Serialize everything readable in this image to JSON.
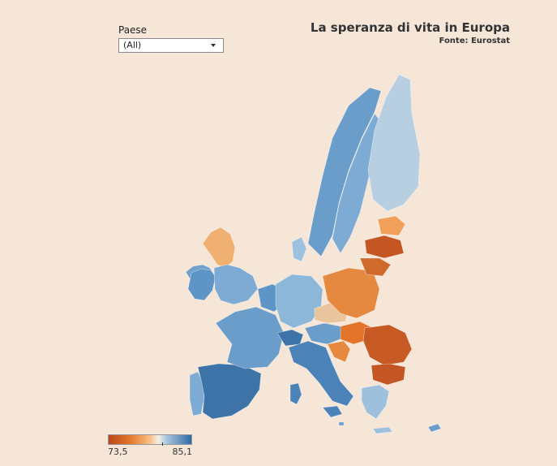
{
  "filter": {
    "label": "Paese",
    "selected": "(All)"
  },
  "header": {
    "title": "La speranza di vita in Europa",
    "source": "Fonte: Eurostat"
  },
  "legend": {
    "min_label": "73,5",
    "max_label": "85,1",
    "colors": [
      "#b8491c",
      "#e3752a",
      "#f9c081",
      "#f3efe6",
      "#a9c8df",
      "#2f69a1"
    ]
  },
  "map": {
    "regions": [
      {
        "name": "Iceland",
        "value": 82.0,
        "color": "#6fa1cc"
      },
      {
        "name": "Ireland",
        "value": 81.5,
        "color": "#5f95c6"
      },
      {
        "name": "United Kingdom North",
        "value": 79.0,
        "color": "#f0b071"
      },
      {
        "name": "United Kingdom South",
        "value": 81.0,
        "color": "#7eabd3"
      },
      {
        "name": "Portugal",
        "value": 80.5,
        "color": "#7eabd3"
      },
      {
        "name": "Spain",
        "value": 83.0,
        "color": "#3e73a8"
      },
      {
        "name": "France",
        "value": 82.5,
        "color": "#6b9dca"
      },
      {
        "name": "Benelux",
        "value": 81.5,
        "color": "#5f95c6"
      },
      {
        "name": "Germany",
        "value": 80.5,
        "color": "#8db7d9"
      },
      {
        "name": "Switzerland",
        "value": 83.5,
        "color": "#3e73a8"
      },
      {
        "name": "Italy",
        "value": 83.0,
        "color": "#4b82b8"
      },
      {
        "name": "Austria",
        "value": 81.5,
        "color": "#6b9dca"
      },
      {
        "name": "Czechia",
        "value": 79.0,
        "color": "#e9c49c"
      },
      {
        "name": "Poland",
        "value": 77.5,
        "color": "#e58940"
      },
      {
        "name": "Hungary",
        "value": 76.0,
        "color": "#e3752a"
      },
      {
        "name": "Romania",
        "value": 75.0,
        "color": "#c75a24"
      },
      {
        "name": "Bulgaria",
        "value": 74.5,
        "color": "#c45623"
      },
      {
        "name": "Croatia",
        "value": 77.5,
        "color": "#e58940"
      },
      {
        "name": "Greece",
        "value": 81.0,
        "color": "#9fc0dd"
      },
      {
        "name": "Norway",
        "value": 82.5,
        "color": "#6b9dca"
      },
      {
        "name": "Sweden",
        "value": 82.5,
        "color": "#7eabd3"
      },
      {
        "name": "Finland",
        "value": 81.5,
        "color": "#b7cfe0"
      },
      {
        "name": "Estonia",
        "value": 78.0,
        "color": "#f0a05a"
      },
      {
        "name": "Latvia",
        "value": 75.0,
        "color": "#c45623"
      },
      {
        "name": "Lithuania",
        "value": 75.5,
        "color": "#d06a2c"
      },
      {
        "name": "Denmark",
        "value": 81.0,
        "color": "#9cc0de"
      },
      {
        "name": "Cyprus",
        "value": 82.5,
        "color": "#6b9dca"
      },
      {
        "name": "Malta",
        "value": 82.5,
        "color": "#6b9dca"
      }
    ]
  }
}
